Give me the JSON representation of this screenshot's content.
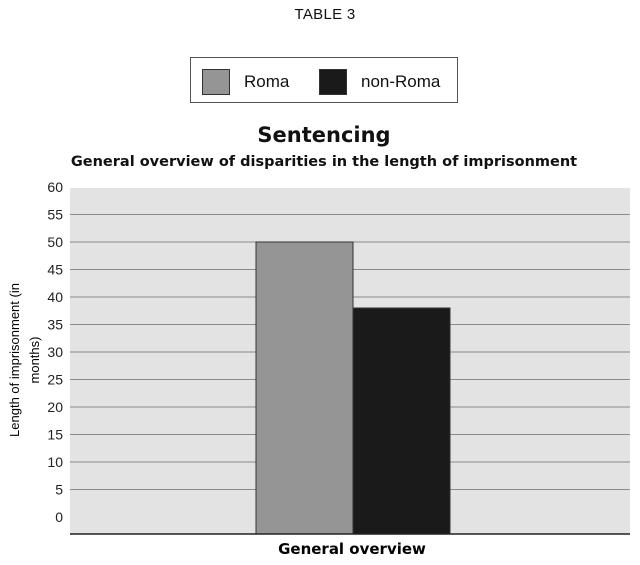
{
  "page": {
    "table_label": "TABLE 3"
  },
  "colors": {
    "plot_background": "#e3e3e3",
    "gridline": "#8a8a8a",
    "axis": "#222222"
  },
  "chart_data": {
    "type": "bar",
    "title": "Sentencing",
    "subtitle": "General overview of disparities in the length of imprisonment",
    "categories": [
      "General overview"
    ],
    "series": [
      {
        "name": "Roma",
        "values": [
          50
        ],
        "color": "#959595"
      },
      {
        "name": "non-Roma",
        "values": [
          38
        ],
        "color": "#1a1a1a"
      }
    ],
    "xlabel": "General overview",
    "ylabel": "Length of imprisonment (in months)",
    "ylim": [
      0,
      60
    ],
    "ytick_step": 5,
    "yticks": [
      "0",
      "5",
      "10",
      "15",
      "20",
      "25",
      "30",
      "35",
      "40",
      "45",
      "50",
      "55",
      "60"
    ],
    "grid": true,
    "legend_position": "top-center"
  }
}
